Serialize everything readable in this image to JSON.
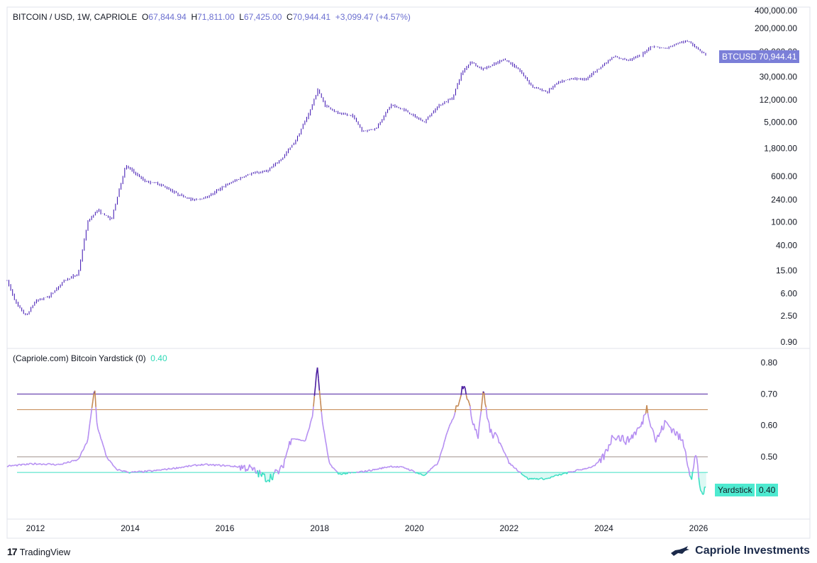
{
  "price_legend": {
    "symbol": "BITCOIN / USD, 1W, CAPRIOLE",
    "o_label": "O",
    "o_value": "67,844.94",
    "h_label": "H",
    "h_value": "71,811.00",
    "l_label": "L",
    "l_value": "67,425.00",
    "c_label": "C",
    "c_value": "70,944.41",
    "change": "+3,099.47 (+4.57%)"
  },
  "indicator_legend": {
    "name": "(Capriole.com) Bitcoin Yardstick (0)",
    "value": "0.40"
  },
  "price_tag": {
    "symbol": "BTCUSD",
    "value": "70,944.41"
  },
  "yardstick_tag": {
    "label": "Yardstick",
    "value": "0.40"
  },
  "footer": {
    "tradingview": "TradingView",
    "brand": "Capriole Investments"
  },
  "colors": {
    "candle": "#3a0fb0",
    "purple_line": "#4b1ea0",
    "orange_line": "#c58a55",
    "gray_line": "#9c8f8a",
    "teal_line": "#3de0c4",
    "yardstick_line": "#b58ef2",
    "tag_purple": "#7b7fd8",
    "tag_teal": "#4eead0"
  },
  "chart_data": [
    {
      "type": "line",
      "scale": "log",
      "x_ticks": [
        "2012",
        "2014",
        "2016",
        "2018",
        "2020",
        "2022",
        "2024",
        "2026"
      ],
      "y_ticks": [
        "400,000.00",
        "200,000.00",
        "80,000.00",
        "30,000.00",
        "12,000.00",
        "5,000.00",
        "1,800.00",
        "600.00",
        "240.00",
        "100.00",
        "40.00",
        "15.00",
        "6.00",
        "2.50",
        "0.90"
      ],
      "series": [
        {
          "x": [
            2011.4,
            2011.6,
            2011.8,
            2012.0,
            2012.3,
            2012.6,
            2012.9,
            2013.1,
            2013.3,
            2013.6,
            2013.9,
            2014.0,
            2014.3,
            2014.6,
            2015.0,
            2015.3,
            2015.6,
            2016.0,
            2016.5,
            2016.9,
            2017.2,
            2017.5,
            2017.8,
            2017.96,
            2018.1,
            2018.4,
            2018.7,
            2018.9,
            2019.2,
            2019.5,
            2019.8,
            2020.2,
            2020.5,
            2020.8,
            2021.0,
            2021.2,
            2021.4,
            2021.6,
            2021.9,
            2022.2,
            2022.5,
            2022.8,
            2023.0,
            2023.3,
            2023.6,
            2023.9,
            2024.2,
            2024.5,
            2024.8,
            2025.0,
            2025.3,
            2025.6,
            2025.8,
            2026.0,
            2026.15
          ],
          "y": [
            10,
            4,
            2.5,
            4.5,
            5.5,
            10,
            13,
            100,
            160,
            110,
            900,
            800,
            500,
            450,
            300,
            240,
            260,
            420,
            650,
            750,
            1200,
            2500,
            8000,
            18000,
            10000,
            7000,
            6500,
            3500,
            4000,
            10000,
            8000,
            5000,
            9500,
            13000,
            35000,
            55000,
            40000,
            45000,
            60000,
            40000,
            20000,
            16500,
            23000,
            28000,
            27000,
            42000,
            65000,
            58000,
            70000,
            100000,
            90000,
            115000,
            120000,
            88000,
            70944
          ]
        }
      ]
    },
    {
      "type": "line",
      "title": "(Capriole.com) Bitcoin Yardstick (0)",
      "x_ticks": [
        "2012",
        "2014",
        "2016",
        "2018",
        "2020",
        "2022",
        "2024",
        "2026"
      ],
      "y_ticks": [
        "0.80",
        "0.70",
        "0.60",
        "0.50"
      ],
      "ylim": [
        0.36,
        0.82
      ],
      "thresholds": [
        0.7,
        0.65,
        0.5,
        0.45
      ],
      "series": [
        {
          "x": [
            2011.4,
            2012.0,
            2012.5,
            2012.9,
            2013.1,
            2013.25,
            2013.3,
            2013.5,
            2013.7,
            2014.0,
            2014.5,
            2015.0,
            2015.5,
            2016.0,
            2016.5,
            2016.9,
            2017.2,
            2017.4,
            2017.7,
            2017.85,
            2017.95,
            2018.05,
            2018.2,
            2018.4,
            2018.8,
            2019.2,
            2019.5,
            2019.8,
            2020.2,
            2020.5,
            2020.7,
            2020.9,
            2021.05,
            2021.2,
            2021.35,
            2021.45,
            2021.6,
            2021.8,
            2022.0,
            2022.4,
            2022.8,
            2023.0,
            2023.4,
            2023.8,
            2024.0,
            2024.2,
            2024.5,
            2024.8,
            2024.9,
            2025.1,
            2025.3,
            2025.5,
            2025.7,
            2025.85,
            2025.95,
            2026.05,
            2026.15
          ],
          "y": [
            0.47,
            0.478,
            0.475,
            0.49,
            0.55,
            0.72,
            0.6,
            0.5,
            0.46,
            0.45,
            0.455,
            0.465,
            0.475,
            0.472,
            0.465,
            0.43,
            0.46,
            0.56,
            0.55,
            0.63,
            0.79,
            0.62,
            0.48,
            0.445,
            0.45,
            0.46,
            0.47,
            0.465,
            0.44,
            0.48,
            0.58,
            0.66,
            0.74,
            0.63,
            0.57,
            0.71,
            0.58,
            0.55,
            0.48,
            0.43,
            0.43,
            0.44,
            0.455,
            0.47,
            0.5,
            0.57,
            0.55,
            0.6,
            0.66,
            0.55,
            0.61,
            0.58,
            0.54,
            0.42,
            0.52,
            0.37,
            0.4
          ]
        }
      ]
    }
  ]
}
